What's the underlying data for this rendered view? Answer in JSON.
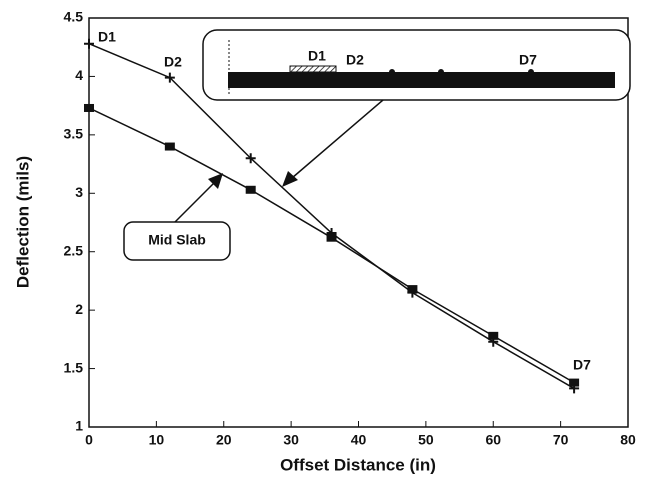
{
  "chart_data": {
    "type": "line",
    "x_label": "Offset Distance (in)",
    "y_label": "Deflection (mils)",
    "x": [
      0,
      12,
      24,
      36,
      48,
      60,
      72
    ],
    "series": [
      {
        "marker": "cross",
        "color": "#111111",
        "values": [
          4.28,
          3.99,
          3.3,
          2.66,
          2.15,
          1.73,
          1.33
        ]
      },
      {
        "name": "Mid Slab",
        "marker": "square",
        "color": "#111111",
        "values": [
          3.73,
          3.4,
          3.03,
          2.62,
          2.18,
          1.78,
          1.38
        ]
      }
    ],
    "xlim": [
      0,
      80
    ],
    "xticks": [
      0,
      10,
      20,
      30,
      40,
      50,
      60,
      70,
      80
    ],
    "ylim": [
      1,
      4.5
    ],
    "yticks": [
      1,
      1.5,
      2,
      2.5,
      3,
      3.5,
      4,
      4.5
    ],
    "annotations": [
      "D1",
      "D2",
      "D7"
    ],
    "inset_labels": [
      "D1",
      "D2",
      "D7"
    ]
  }
}
